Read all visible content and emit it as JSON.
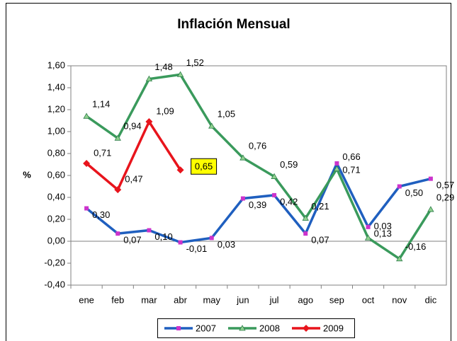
{
  "chart_data": {
    "type": "line",
    "title": "Inflación Mensual",
    "ylabel": "%",
    "categories": [
      "ene",
      "feb",
      "mar",
      "abr",
      "may",
      "jun",
      "jul",
      "ago",
      "sep",
      "oct",
      "nov",
      "dic"
    ],
    "series": [
      {
        "name": "2007",
        "color": "#1f5fbf",
        "marker": "square",
        "marker_color": "#cc33cc",
        "values": [
          0.3,
          0.07,
          0.1,
          -0.01,
          0.03,
          0.39,
          0.42,
          0.07,
          0.71,
          0.13,
          0.5,
          0.57
        ],
        "value_labels": [
          "0,30",
          "0,07",
          "0,10",
          "-0,01",
          "0,03",
          "0,39",
          "0,42",
          "0,07",
          "0,71",
          "0,13",
          "0,50",
          "0,57"
        ]
      },
      {
        "name": "2008",
        "color": "#3a9a5c",
        "marker": "triangle",
        "marker_color": "#8fd18f",
        "values": [
          1.14,
          0.94,
          1.48,
          1.52,
          1.05,
          0.76,
          0.59,
          0.21,
          0.66,
          0.03,
          -0.16,
          0.29
        ],
        "value_labels": [
          "1,14",
          "0,94",
          "1,48",
          "1,52",
          "1,05",
          "0,76",
          "0,59",
          "0,21",
          "0,66",
          "0,03",
          "-0,16",
          "0,29"
        ]
      },
      {
        "name": "2009",
        "color": "#e8141c",
        "marker": "diamond",
        "marker_color": "#e8141c",
        "values": [
          0.71,
          0.47,
          1.09,
          0.65,
          null,
          null,
          null,
          null,
          null,
          null,
          null,
          null
        ],
        "value_labels": [
          "0,71",
          "0,47",
          "1,09",
          "0,65",
          null,
          null,
          null,
          null,
          null,
          null,
          null,
          null
        ]
      }
    ],
    "ylim": [
      -0.4,
      1.6
    ],
    "yticks": [
      {
        "value": -0.4,
        "label": "-0,40"
      },
      {
        "value": -0.2,
        "label": "-0,20"
      },
      {
        "value": 0,
        "label": "0,00"
      },
      {
        "value": 0.2,
        "label": "0,20"
      },
      {
        "value": 0.4,
        "label": "0,40"
      },
      {
        "value": 0.6,
        "label": "0,60"
      },
      {
        "value": 0.8,
        "label": "0,80"
      },
      {
        "value": 1.0,
        "label": "1,00"
      },
      {
        "value": 1.2,
        "label": "1,20"
      },
      {
        "value": 1.4,
        "label": "1,40"
      },
      {
        "value": 1.6,
        "label": "1,60"
      }
    ],
    "grid": false,
    "legend": "bottom"
  }
}
